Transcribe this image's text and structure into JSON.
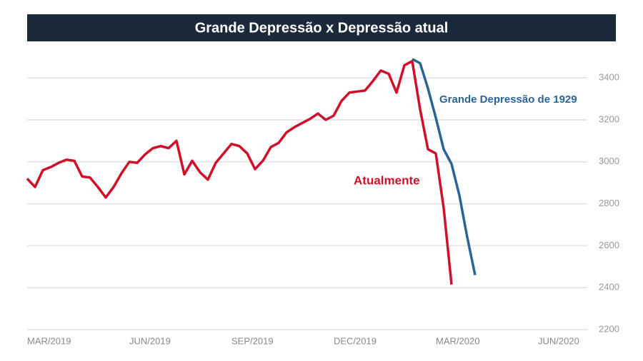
{
  "chart_data": {
    "type": "line",
    "title": "Grande Depressão x Depressão atual",
    "annotations": [
      "Grande Depressão de 1929",
      "Atualmente"
    ],
    "categories": [
      "MAR/2019",
      null,
      null,
      null,
      null,
      null,
      null,
      null,
      null,
      null,
      null,
      null,
      null,
      "JUN/2019",
      null,
      null,
      null,
      null,
      null,
      null,
      null,
      null,
      null,
      null,
      null,
      null,
      "SEP/2019",
      null,
      null,
      null,
      null,
      null,
      null,
      null,
      null,
      null,
      null,
      null,
      null,
      "DEC/2019",
      null,
      null,
      null,
      null,
      null,
      null,
      null,
      null,
      null,
      null,
      null,
      null,
      "MAR/2020",
      null,
      null,
      null,
      null,
      null,
      null,
      null,
      null,
      null,
      null,
      null,
      null,
      "JUN/2020",
      null,
      null,
      null,
      null,
      null,
      null
    ],
    "series": [
      {
        "name": "Atualmente",
        "color": "#d0102a",
        "values": [
          2920,
          2880,
          2960,
          2975,
          2995,
          3010,
          3005,
          2930,
          2925,
          2880,
          2830,
          2880,
          2945,
          3000,
          2995,
          3035,
          3065,
          3075,
          3065,
          3100,
          2940,
          3005,
          2950,
          2915,
          2995,
          3040,
          3085,
          3075,
          3040,
          2965,
          3005,
          3070,
          3090,
          3140,
          3165,
          3185,
          3205,
          3230,
          3200,
          3220,
          3290,
          3330,
          3335,
          3340,
          3385,
          3435,
          3420,
          3330,
          3460,
          3480,
          3250,
          3060,
          3040,
          2780,
          2415,
          null,
          null,
          null,
          null,
          null,
          null,
          null,
          null,
          null,
          null,
          null,
          null,
          null,
          null,
          null,
          null,
          null
        ]
      },
      {
        "name": "Grande Depressão de 1929",
        "color": "#2a6496",
        "values": [
          null,
          null,
          null,
          null,
          null,
          null,
          null,
          null,
          null,
          null,
          null,
          null,
          null,
          null,
          null,
          null,
          null,
          null,
          null,
          null,
          null,
          null,
          null,
          null,
          null,
          null,
          null,
          null,
          null,
          null,
          null,
          null,
          null,
          null,
          null,
          null,
          null,
          null,
          null,
          null,
          null,
          null,
          null,
          null,
          null,
          null,
          null,
          null,
          null,
          3490,
          3470,
          3350,
          3210,
          3060,
          2990,
          2840,
          2640,
          2460,
          null,
          null,
          null,
          null,
          null,
          null,
          null,
          null,
          null,
          null,
          null,
          null,
          null,
          null
        ]
      }
    ],
    "ylim": [
      2200,
      3500
    ],
    "yticks": [
      2200,
      2400,
      2600,
      2800,
      3000,
      3200,
      3400
    ],
    "grid": true
  }
}
